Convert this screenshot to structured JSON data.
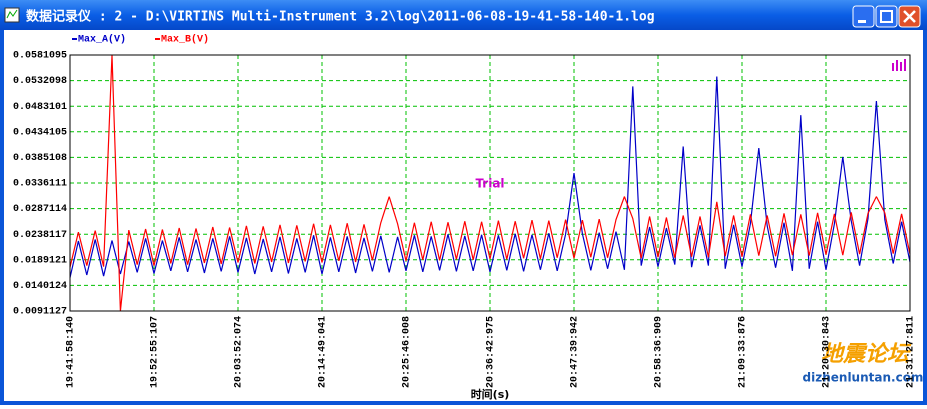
{
  "window": {
    "title": "数据记录仪 : 2 - D:\\VIRTINS Multi-Instrument 3.2\\log\\2011-06-08-19-41-58-140-1.log"
  },
  "watermark": {
    "brand": "地震论坛",
    "url": "dizhenluntan.com"
  },
  "chart_data": {
    "type": "line",
    "x_label": "时间(s)",
    "annotation": "Trial",
    "grid": true,
    "xlim": [
      0,
      6570
    ],
    "xticks": [
      {
        "value": 0,
        "label": "19:41:58:140"
      },
      {
        "value": 657,
        "label": "19:52:55:107"
      },
      {
        "value": 1314,
        "label": "20:03:52:074"
      },
      {
        "value": 1971,
        "label": "20:14:49:041"
      },
      {
        "value": 2628,
        "label": "20:25:46:008"
      },
      {
        "value": 3285,
        "label": "20:36:42:975"
      },
      {
        "value": 3942,
        "label": "20:47:39:942"
      },
      {
        "value": 4599,
        "label": "20:58:36:909"
      },
      {
        "value": 5256,
        "label": "21:09:33:876"
      },
      {
        "value": 5913,
        "label": "21:20:30:843"
      },
      {
        "value": 6570,
        "label": "21:31:27:811"
      }
    ],
    "ylim": [
      0.0091127,
      0.0581095
    ],
    "yticks": [
      0.0091127,
      0.0140124,
      0.0189121,
      0.0238117,
      0.0287114,
      0.0336111,
      0.0385108,
      0.0434105,
      0.0483101,
      0.0532098,
      0.0581095
    ],
    "x": [
      0,
      65.7,
      131.4,
      197.1,
      262.8,
      328.5,
      394.2,
      459.9,
      525.6,
      591.3,
      657,
      722.7,
      788.4,
      854.1,
      919.8,
      985.5,
      1051.2,
      1116.9,
      1182.6,
      1248.3,
      1314,
      1379.7,
      1445.4,
      1511.1,
      1576.8,
      1642.5,
      1708.2,
      1773.9,
      1839.6,
      1905.3,
      1971,
      2036.7,
      2102.4,
      2168.1,
      2233.8,
      2299.5,
      2365.2,
      2430.9,
      2496.6,
      2562.3,
      2628,
      2693.7,
      2759.4,
      2825.1,
      2890.8,
      2956.5,
      3022.2,
      3087.9,
      3153.6,
      3219.3,
      3285,
      3350.7,
      3416.4,
      3482.1,
      3547.8,
      3613.5,
      3679.2,
      3744.9,
      3810.6,
      3876.3,
      3942,
      4007.7,
      4073.4,
      4139.1,
      4204.8,
      4270.5,
      4336.2,
      4401.9,
      4467.6,
      4533.3,
      4599,
      4664.7,
      4730.4,
      4796.1,
      4861.8,
      4927.5,
      4993.2,
      5058.9,
      5124.6,
      5190.3,
      5256,
      5321.7,
      5387.4,
      5453.1,
      5518.8,
      5584.5,
      5650.2,
      5715.9,
      5781.6,
      5847.3,
      5913,
      5978.7,
      6044.4,
      6110.1,
      6175.8,
      6241.5,
      6307.2,
      6372.9,
      6438.6,
      6504.3,
      6570
    ],
    "series": [
      {
        "name": "Max_A(V)",
        "color": "#0000c8",
        "values": [
          0.0155,
          0.0225,
          0.016,
          0.0228,
          0.0158,
          0.0226,
          0.0162,
          0.0224,
          0.0165,
          0.023,
          0.0163,
          0.0226,
          0.0168,
          0.0232,
          0.0166,
          0.0228,
          0.0164,
          0.023,
          0.0167,
          0.0234,
          0.0165,
          0.0231,
          0.0162,
          0.0229,
          0.0166,
          0.0233,
          0.0163,
          0.023,
          0.0165,
          0.0236,
          0.0162,
          0.0232,
          0.0166,
          0.0234,
          0.0164,
          0.0231,
          0.0167,
          0.0235,
          0.0165,
          0.0233,
          0.0168,
          0.0236,
          0.0166,
          0.0234,
          0.0169,
          0.0238,
          0.0167,
          0.0235,
          0.0168,
          0.0237,
          0.0166,
          0.0236,
          0.0169,
          0.0239,
          0.0167,
          0.0237,
          0.017,
          0.024,
          0.0168,
          0.0238,
          0.0355,
          0.0239,
          0.0169,
          0.0241,
          0.0172,
          0.0243,
          0.017,
          0.0521,
          0.0178,
          0.0252,
          0.0176,
          0.025,
          0.018,
          0.0406,
          0.0175,
          0.0255,
          0.0178,
          0.054,
          0.0172,
          0.0256,
          0.0176,
          0.0258,
          0.0403,
          0.0254,
          0.0174,
          0.026,
          0.0168,
          0.0466,
          0.0172,
          0.0262,
          0.017,
          0.0258,
          0.0386,
          0.0264,
          0.0178,
          0.0268,
          0.0493,
          0.0266,
          0.0182,
          0.0262,
          0.0185
        ]
      },
      {
        "name": "Max_B(V)",
        "color": "#ff0000",
        "values": [
          0.0175,
          0.0242,
          0.0178,
          0.0245,
          0.0176,
          0.0581,
          0.0091,
          0.0246,
          0.018,
          0.0248,
          0.0178,
          0.0247,
          0.0182,
          0.025,
          0.018,
          0.0249,
          0.0183,
          0.0252,
          0.0181,
          0.0251,
          0.0184,
          0.0254,
          0.0182,
          0.0253,
          0.0185,
          0.0256,
          0.0183,
          0.0255,
          0.0186,
          0.0258,
          0.0184,
          0.0256,
          0.0187,
          0.0259,
          0.0185,
          0.0257,
          0.0188,
          0.026,
          0.031,
          0.0258,
          0.0187,
          0.026,
          0.0189,
          0.0262,
          0.0188,
          0.0261,
          0.019,
          0.0263,
          0.0189,
          0.0262,
          0.0191,
          0.0264,
          0.019,
          0.0263,
          0.0192,
          0.0265,
          0.0191,
          0.0264,
          0.0193,
          0.0266,
          0.0192,
          0.0265,
          0.0194,
          0.0267,
          0.0193,
          0.0266,
          0.031,
          0.0268,
          0.0192,
          0.0272,
          0.0194,
          0.027,
          0.0193,
          0.0274,
          0.0195,
          0.0272,
          0.0194,
          0.03,
          0.0196,
          0.0274,
          0.0195,
          0.0276,
          0.0197,
          0.0274,
          0.0196,
          0.0278,
          0.0198,
          0.0276,
          0.0197,
          0.0279,
          0.0199,
          0.0277,
          0.0198,
          0.028,
          0.02,
          0.0278,
          0.031,
          0.0279,
          0.0201,
          0.0277,
          0.02
        ]
      }
    ]
  }
}
